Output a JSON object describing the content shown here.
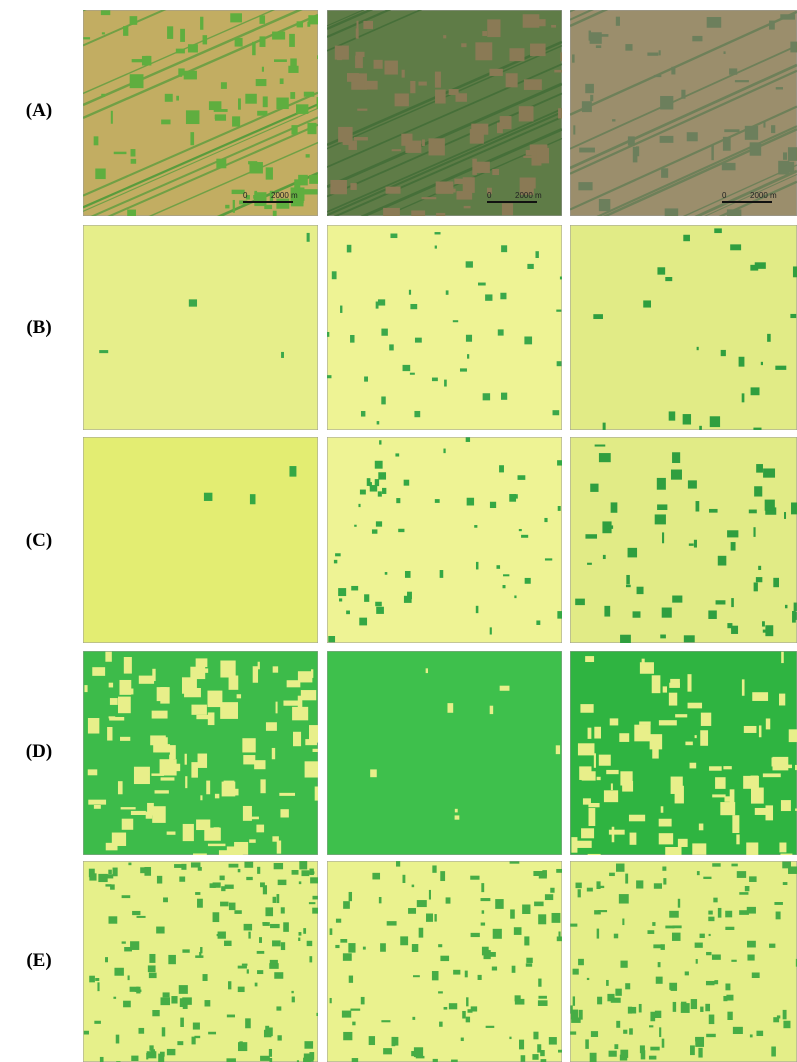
{
  "rows": [
    {
      "label": "(A)",
      "scale_bars": [
        {
          "start": "0",
          "end": "2000 m"
        },
        {
          "start": "0",
          "end": "2000 m"
        },
        {
          "start": "0",
          "end": "2000 m"
        }
      ]
    },
    {
      "label": "(B)"
    },
    {
      "label": "(C)"
    },
    {
      "label": "(D)"
    },
    {
      "label": "(E)"
    }
  ]
}
